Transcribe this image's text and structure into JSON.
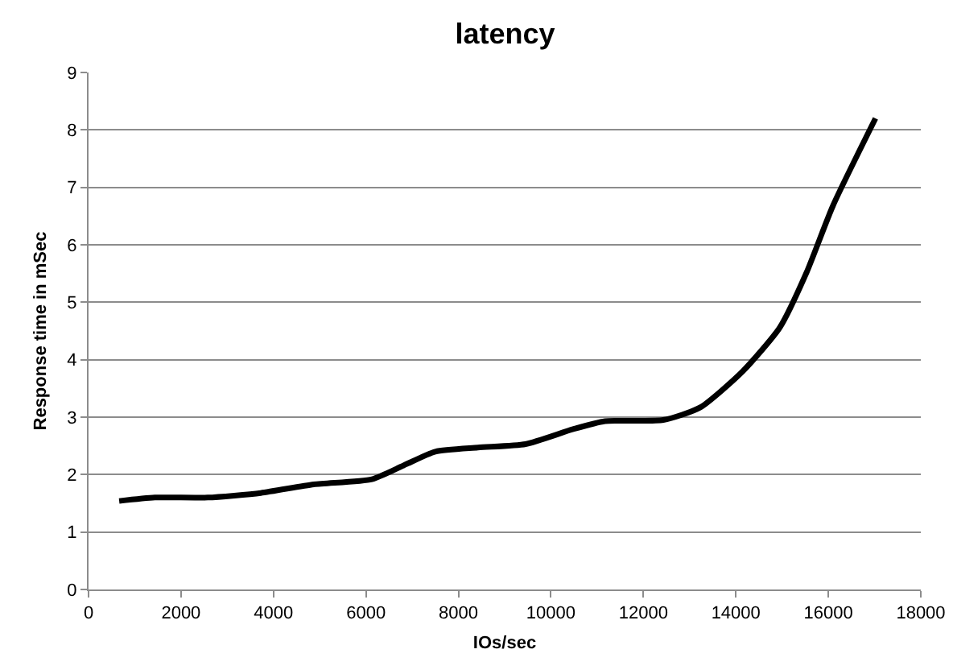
{
  "chart_data": {
    "type": "line",
    "title": "latency",
    "xlabel": "IOs/sec",
    "ylabel": "Response time in mSec",
    "x": [
      663,
      1435,
      2580,
      3725,
      4870,
      6130,
      6815,
      7500,
      8420,
      9450,
      10480,
      11170,
      12430,
      13230,
      14150,
      14950,
      15530,
      16100,
      17020
    ],
    "series": [
      {
        "color": "#000000",
        "values": [
          1.54,
          1.6,
          1.6,
          1.68,
          1.83,
          1.92,
          2.16,
          2.4,
          2.47,
          2.53,
          2.79,
          2.93,
          2.95,
          3.17,
          3.8,
          4.56,
          5.52,
          6.68,
          8.2
        ]
      }
    ],
    "xlim": [
      0,
      18000
    ],
    "xticks": [
      0,
      2000,
      4000,
      6000,
      8000,
      10000,
      12000,
      14000,
      16000,
      18000
    ],
    "ylim": [
      0,
      9
    ],
    "yticks": [
      0,
      1,
      2,
      3,
      4,
      5,
      6,
      7,
      8,
      9
    ],
    "grid": "y",
    "marker": "none",
    "line_style": "solid"
  }
}
